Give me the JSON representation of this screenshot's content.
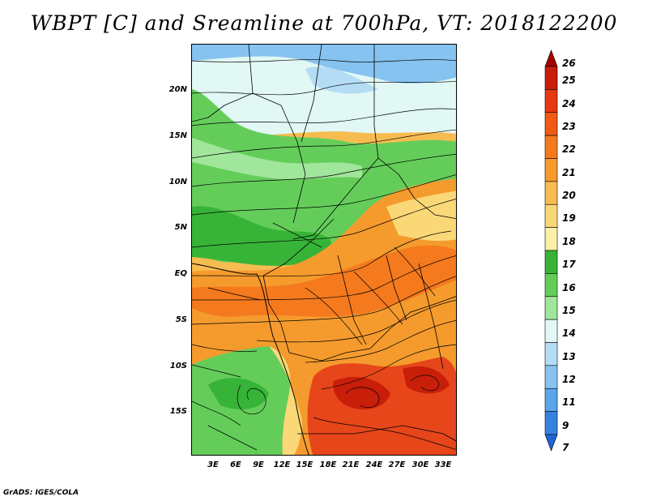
{
  "title": "WBPT [C] and Sreamline at 700hPa, VT: 2018122200",
  "footer": "GrADS: IGES/COLA",
  "map": {
    "lat_labels": [
      "20N",
      "15N",
      "10N",
      "5N",
      "EQ",
      "5S",
      "10S",
      "15S"
    ],
    "lon_labels": [
      "3E",
      "6E",
      "9E",
      "12E",
      "15E",
      "18E",
      "21E",
      "24E",
      "27E",
      "30E",
      "33E"
    ]
  },
  "colorbar": {
    "labels": [
      "26",
      "25",
      "24",
      "23",
      "22",
      "21",
      "20",
      "19",
      "18",
      "17",
      "16",
      "15",
      "14",
      "13",
      "12",
      "11",
      "9",
      "7"
    ],
    "colors": [
      "#a50000",
      "#c81e0a",
      "#e6390f",
      "#f05a14",
      "#f57a1e",
      "#f59b2d",
      "#f7bc50",
      "#fad878",
      "#fcf0a8",
      "#37b437",
      "#64cd5a",
      "#a0e69b",
      "#e1f8f5",
      "#b4dcf5",
      "#87c3f0",
      "#5aa5eb",
      "#3782e1",
      "#1e64d2"
    ]
  },
  "colors": {
    "land_green": "#64cd5a",
    "land_orange": "#f5a030",
    "hot_red": "#e6461a",
    "cold_blue": "#87c3f0"
  }
}
